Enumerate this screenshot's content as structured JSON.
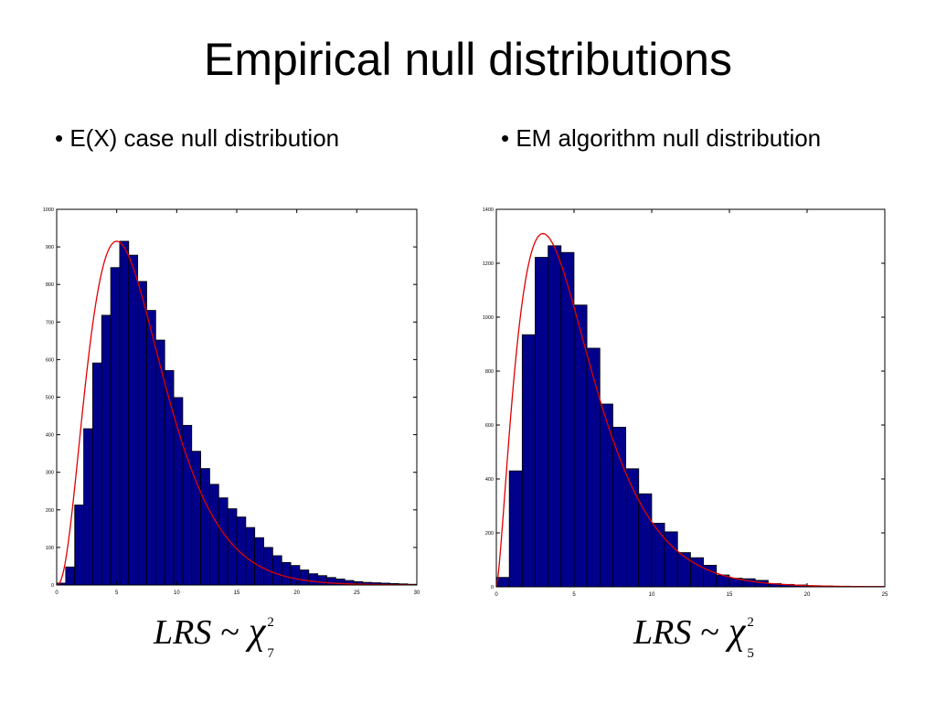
{
  "slide": {
    "title": "Empirical null distributions",
    "bullets": [
      "• E(X) case null distribution",
      "• EM algorithm null distribution"
    ],
    "formulas": [
      {
        "lhs": "LRS",
        "op": "~",
        "symbol": "χ",
        "sup": "2",
        "sub": "7"
      },
      {
        "lhs": "LRS",
        "op": "~",
        "symbol": "χ",
        "sup": "2",
        "sub": "5"
      }
    ]
  },
  "colors": {
    "bar_fill": "#00008B",
    "bar_edge": "#000000",
    "curve": "#E00000",
    "axis": "#000000"
  },
  "chart_data": [
    {
      "type": "bar",
      "title": "",
      "xlabel": "",
      "ylabel": "",
      "xlim": [
        0,
        30
      ],
      "ylim": [
        0,
        1000
      ],
      "xticks": [
        0,
        5,
        10,
        15,
        20,
        25,
        30
      ],
      "yticks": [
        0,
        100,
        200,
        300,
        400,
        500,
        600,
        700,
        800,
        900,
        1000
      ],
      "grid": false,
      "bin_width": 0.75,
      "x_start": 0,
      "values": [
        5,
        48,
        213,
        416,
        591,
        718,
        845,
        915,
        878,
        808,
        731,
        652,
        571,
        499,
        425,
        356,
        310,
        268,
        232,
        203,
        181,
        153,
        126,
        100,
        78,
        60,
        52,
        40,
        30,
        25,
        20,
        16,
        12,
        9,
        7,
        6,
        5,
        4,
        3,
        2
      ],
      "curve": {
        "name": "",
        "df": 7,
        "peak": 915,
        "mode": 5
      }
    },
    {
      "type": "bar",
      "title": "",
      "xlabel": "",
      "ylabel": "",
      "xlim": [
        0,
        25
      ],
      "ylim": [
        0,
        1400
      ],
      "xticks": [
        0,
        5,
        10,
        15,
        20,
        25
      ],
      "yticks": [
        0,
        200,
        400,
        600,
        800,
        1000,
        1200,
        1400
      ],
      "grid": false,
      "bin_width": 0.833,
      "x_start": 0,
      "values": [
        35,
        430,
        935,
        1222,
        1265,
        1240,
        1045,
        885,
        678,
        592,
        438,
        345,
        236,
        204,
        127,
        108,
        80,
        44,
        32,
        30,
        24,
        12,
        9,
        7,
        4,
        3,
        2,
        2,
        1,
        1
      ],
      "curve": {
        "name": "",
        "df": 5,
        "peak": 1310,
        "mode": 3
      }
    }
  ]
}
